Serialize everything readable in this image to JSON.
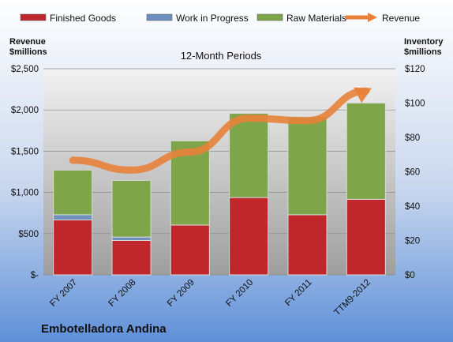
{
  "chart_data": {
    "type": "bar",
    "subtitle": "12-Month Periods",
    "company": "Embotelladora Andina",
    "categories": [
      "FY 2007",
      "FY 2008",
      "FY 2009",
      "FY 2010",
      "FY 2011",
      "TTM9-2012"
    ],
    "left_axis": {
      "title_line1": "Revenue",
      "title_line2": "$millions",
      "ylim": [
        0,
        2500
      ],
      "ticks": [
        0,
        500,
        1000,
        1500,
        2000,
        2500
      ],
      "tick_labels": [
        "$-",
        "$500",
        "$1,000",
        "$1,500",
        "$2,000",
        "$2,500"
      ]
    },
    "right_axis": {
      "title_line1": "Inventory",
      "title_line2": "$millions",
      "ylim": [
        0,
        120
      ],
      "ticks": [
        0,
        20,
        40,
        60,
        80,
        100,
        120
      ],
      "tick_labels": [
        "$0",
        "$20",
        "$40",
        "$60",
        "$80",
        "$100",
        "$120"
      ]
    },
    "stacked_series": [
      {
        "name": "Finished Goods",
        "color": "#c0272d",
        "axis": "right",
        "values": [
          32,
          20,
          29,
          45,
          35,
          44
        ]
      },
      {
        "name": "Work in Progress",
        "color": "#6f8fbf",
        "axis": "right",
        "values": [
          3,
          2,
          0,
          0,
          0,
          0
        ]
      },
      {
        "name": "Raw Materials",
        "color": "#7fa54a",
        "axis": "right",
        "values": [
          26,
          33,
          49,
          49,
          57,
          56
        ]
      }
    ],
    "line_series": {
      "name": "Revenue",
      "color": "#e8823a",
      "axis": "left",
      "values": [
        1390,
        1270,
        1490,
        1900,
        1870,
        2230
      ]
    },
    "grid": true,
    "legend_position": "top"
  }
}
